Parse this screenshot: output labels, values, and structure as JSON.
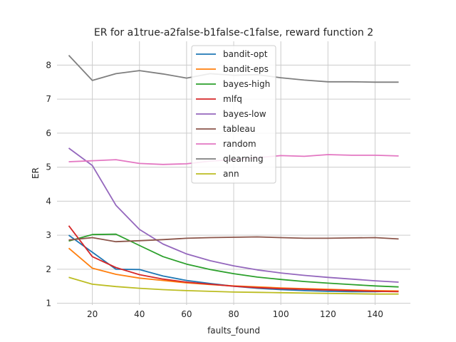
{
  "chart_data": {
    "type": "line",
    "title": "ER for a1true-a2false-b1false-c1false, reward function 2",
    "xlabel": "faults_found",
    "ylabel": "ER",
    "xlim": [
      5,
      155
    ],
    "ylim": [
      0.95,
      8.7
    ],
    "xticks": [
      20,
      40,
      60,
      80,
      100,
      120,
      140
    ],
    "yticks": [
      1,
      2,
      3,
      4,
      5,
      6,
      7,
      8
    ],
    "grid": true,
    "legend_position": "top-center",
    "x": [
      10,
      20,
      30,
      40,
      50,
      60,
      70,
      80,
      90,
      100,
      110,
      120,
      130,
      140,
      150
    ],
    "series": [
      {
        "name": "bandit-opt",
        "color": "#1f77b4",
        "values": [
          3.0,
          2.5,
          2.0,
          1.99,
          1.8,
          1.67,
          1.58,
          1.5,
          1.44,
          1.4,
          1.37,
          1.35,
          1.34,
          1.34,
          1.36
        ]
      },
      {
        "name": "bandit-eps",
        "color": "#ff7f0e",
        "values": [
          2.62,
          2.03,
          1.85,
          1.74,
          1.67,
          1.6,
          1.55,
          1.51,
          1.48,
          1.45,
          1.43,
          1.41,
          1.39,
          1.37,
          1.36
        ]
      },
      {
        "name": "bayes-high",
        "color": "#2ca02c",
        "values": [
          2.83,
          3.02,
          3.03,
          2.7,
          2.37,
          2.15,
          1.99,
          1.87,
          1.77,
          1.7,
          1.64,
          1.59,
          1.55,
          1.51,
          1.48
        ]
      },
      {
        "name": "mlfq",
        "color": "#d62728",
        "values": [
          3.28,
          2.37,
          2.05,
          1.84,
          1.71,
          1.62,
          1.56,
          1.5,
          1.46,
          1.43,
          1.41,
          1.39,
          1.37,
          1.35,
          1.34
        ]
      },
      {
        "name": "bayes-low",
        "color": "#9467bd",
        "values": [
          5.56,
          5.05,
          3.88,
          3.17,
          2.74,
          2.45,
          2.25,
          2.1,
          1.98,
          1.89,
          1.82,
          1.76,
          1.71,
          1.66,
          1.62
        ]
      },
      {
        "name": "tableau",
        "color": "#8c564b",
        "values": [
          2.86,
          2.93,
          2.81,
          2.84,
          2.87,
          2.91,
          2.93,
          2.94,
          2.95,
          2.93,
          2.91,
          2.91,
          2.92,
          2.93,
          2.89
        ]
      },
      {
        "name": "random",
        "color": "#e377c2",
        "values": [
          5.16,
          5.19,
          5.22,
          5.11,
          5.08,
          5.1,
          5.18,
          5.22,
          5.28,
          5.34,
          5.32,
          5.37,
          5.35,
          5.35,
          5.33
        ]
      },
      {
        "name": "qlearning",
        "color": "#7f7f7f",
        "values": [
          8.29,
          7.55,
          7.75,
          7.84,
          7.74,
          7.62,
          7.75,
          7.7,
          7.72,
          7.63,
          7.56,
          7.51,
          7.51,
          7.5,
          7.5
        ]
      },
      {
        "name": "ann",
        "color": "#bcbd22",
        "values": [
          1.76,
          1.56,
          1.49,
          1.44,
          1.4,
          1.37,
          1.35,
          1.33,
          1.32,
          1.31,
          1.3,
          1.29,
          1.28,
          1.27,
          1.27
        ]
      }
    ]
  }
}
